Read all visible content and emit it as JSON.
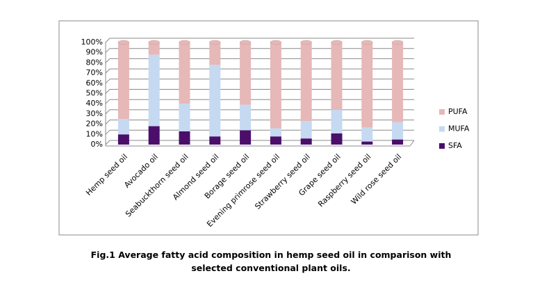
{
  "chart_data": {
    "type": "stacked_bar",
    "caption": "Fig.1 Average fatty acid composition in hemp seed oil in comparison with selected conventional plant oils.",
    "categories": [
      "Hemp seed oil",
      "Avocado oil",
      "Seabuckthorn seed oil",
      "Almond seed oil",
      "Borage seed oil",
      "Evening primrose seed oil",
      "Strawberry seed oil",
      "Grape seed oil",
      "Raspberry seed oil",
      "Wild rose seed oil"
    ],
    "series": [
      {
        "name": "SFA",
        "color": "#4b0f6b",
        "values": [
          10,
          18,
          13,
          8,
          14,
          8,
          6,
          11,
          3,
          5
        ]
      },
      {
        "name": "MUFA",
        "color": "#c5d9f1",
        "values": [
          15,
          70,
          27,
          70,
          25,
          8,
          17,
          23,
          14,
          17
        ]
      },
      {
        "name": "PUFA",
        "color": "#e6b8b7",
        "values": [
          75,
          12,
          60,
          22,
          61,
          84,
          77,
          66,
          83,
          78
        ]
      }
    ],
    "ylim": [
      0,
      100
    ],
    "yticks": [
      {
        "value": 0,
        "label": "0%"
      },
      {
        "value": 10,
        "label": "10%"
      },
      {
        "value": 20,
        "label": "20%"
      },
      {
        "value": 30,
        "label": "30%"
      },
      {
        "value": 40,
        "label": "40%"
      },
      {
        "value": 50,
        "label": "50%"
      },
      {
        "value": 60,
        "label": "60%"
      },
      {
        "value": 70,
        "label": "70%"
      },
      {
        "value": 80,
        "label": "80%"
      },
      {
        "value": 90,
        "label": "90%"
      },
      {
        "value": 100,
        "label": "100%"
      }
    ],
    "grid": true,
    "legend": "right"
  }
}
